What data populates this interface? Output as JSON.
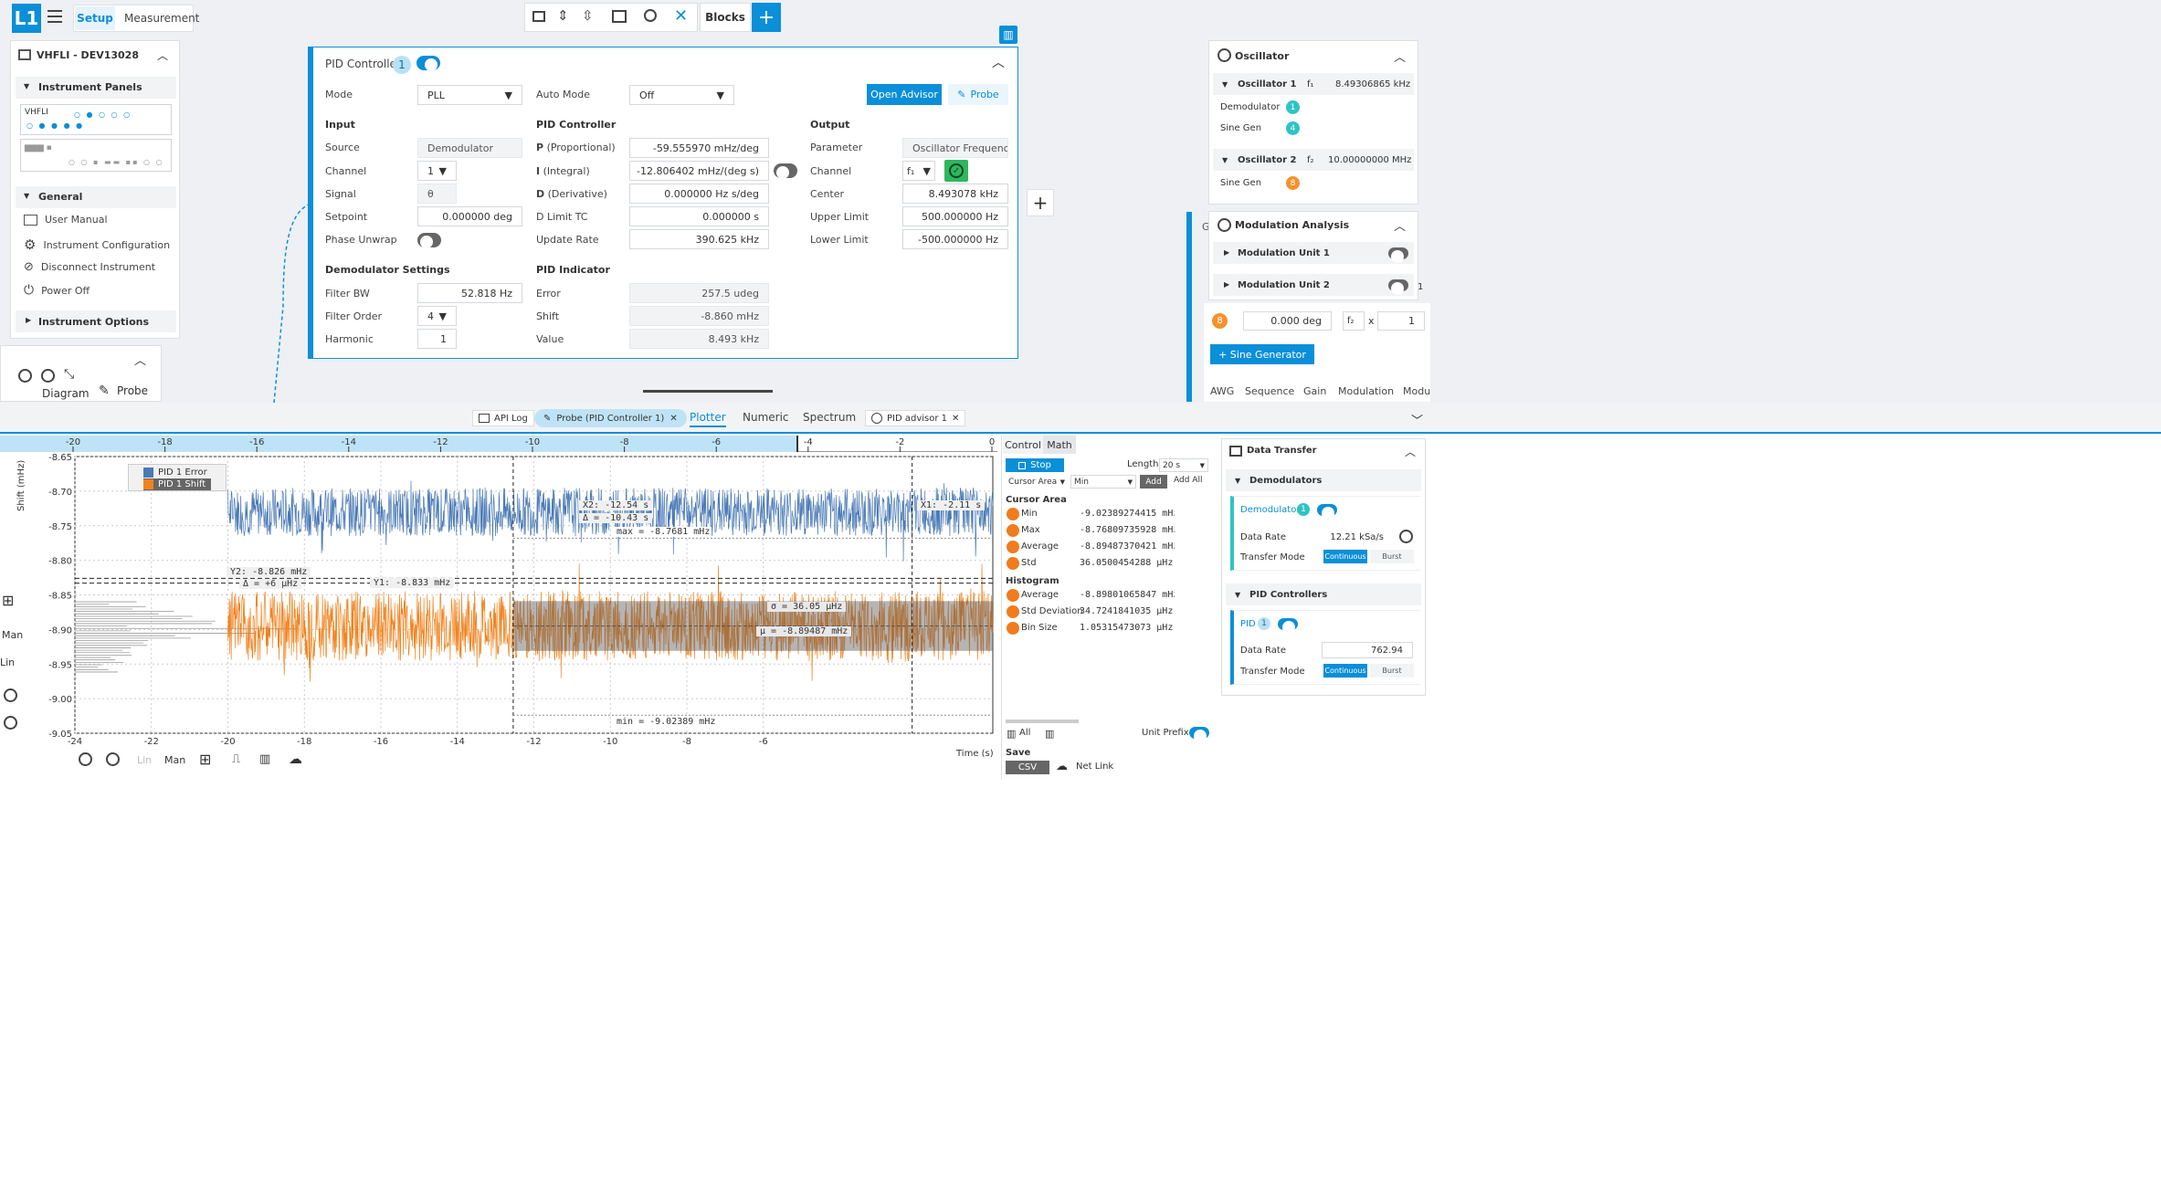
{
  "app": {
    "logo": "L1",
    "tabs": [
      "Setup",
      "Measurement"
    ],
    "active_tab": "Setup"
  },
  "toolbar": {
    "blocks_label": "Blocks",
    "add_label": "+"
  },
  "sidebar": {
    "device": "VHFLI - DEV13028",
    "instrument_panels": "Instrument Panels",
    "panel_thumb_label": "VHFLI",
    "general": "General",
    "general_items": [
      "User Manual",
      "Instrument Configuration",
      "Disconnect Instrument",
      "Power Off"
    ],
    "instrument_options": "Instrument Options",
    "diagram_label": "Diagram",
    "probe_label": "Probe"
  },
  "pid": {
    "title": "PID Controller",
    "badge": "1",
    "mode_label": "Mode",
    "mode_value": "PLL",
    "auto_mode_label": "Auto Mode",
    "auto_mode_value": "Off",
    "open_advisor": "Open Advisor",
    "probe": "Probe",
    "input": {
      "heading": "Input",
      "rows": [
        {
          "label": "Source",
          "value": "Demodulator"
        },
        {
          "label": "Channel",
          "value": "1"
        },
        {
          "label": "Signal",
          "value": "θ"
        },
        {
          "label": "Setpoint",
          "value": "0.000000 deg"
        },
        {
          "label": "Phase Unwrap",
          "value": ""
        }
      ]
    },
    "controller": {
      "heading": "PID Controller",
      "rows": [
        {
          "label_bold": "P",
          "label_rest": "(Proportional)",
          "value": "-59.555970 mHz/deg"
        },
        {
          "label_bold": "I",
          "label_rest": "(Integral)",
          "value": "-12.806402 mHz/(deg s)"
        },
        {
          "label_bold": "D",
          "label_rest": "(Derivative)",
          "value": "0.000000 Hz s/deg"
        },
        {
          "label_bold": "",
          "label_rest": "D Limit TC",
          "value": "0.000000 s"
        },
        {
          "label_bold": "",
          "label_rest": "Update Rate",
          "value": "390.625 kHz"
        }
      ]
    },
    "output": {
      "heading": "Output",
      "rows": [
        {
          "label": "Parameter",
          "value": "Oscillator Frequency"
        },
        {
          "label": "Channel",
          "value": "f₁"
        },
        {
          "label": "Center",
          "value": "8.493078 kHz"
        },
        {
          "label": "Upper Limit",
          "value": "500.000000 Hz"
        },
        {
          "label": "Lower Limit",
          "value": "-500.000000 Hz"
        }
      ]
    },
    "demod_settings": {
      "heading": "Demodulator Settings",
      "rows": [
        {
          "label": "Filter BW",
          "value": "52.818 Hz"
        },
        {
          "label": "Filter Order",
          "value": "4"
        },
        {
          "label": "Harmonic",
          "value": "1"
        }
      ]
    },
    "indicator": {
      "heading": "PID Indicator",
      "rows": [
        {
          "label": "Error",
          "value": "257.5 udeg"
        },
        {
          "label": "Shift",
          "value": "-8.860 mHz"
        },
        {
          "label": "Value",
          "value": "8.493 kHz"
        }
      ]
    }
  },
  "right_panel": {
    "oscillator_title": "Oscillator",
    "osc1": "Oscillator 1",
    "osc1_sym": "f₁",
    "osc1_freq": "8.49306865 kHz",
    "demodulator": "Demodulator",
    "demodulator_badge": "1",
    "sine_gen": "Sine Gen",
    "sine_gen_badge": "4",
    "osc2": "Oscillator 2",
    "osc2_sym": "f₂",
    "osc2_freq": "10.00000000 MHz",
    "sine_gen2": "Sine Gen",
    "sine_gen2_badge": "8",
    "mod_title": "Modulation Analysis",
    "mod_unit1": "Modulation Unit 1",
    "mod_unit2": "Modulation Unit 2",
    "row8_badge": "8",
    "row8_phase": "0.000 deg",
    "row8_sym": "f₂",
    "row8_x": "x",
    "row8_mult": "1",
    "sine_generator_btn": "+ Sine Generator",
    "bottom_tabs": [
      "AWG",
      "Sequence",
      "Gain",
      "Modulation",
      "Modu"
    ],
    "cut_letter": "G",
    "cut_one": "1"
  },
  "lower_tabs": {
    "api_log": "API Log",
    "probe_tab": "Probe (PID Controller 1)",
    "plotter": "Plotter",
    "numeric": "Numeric",
    "spectrum": "Spectrum",
    "advisor": "PID advisor 1"
  },
  "plot": {
    "ylabel": "Shift (mHz)",
    "xlabel": "Time (s)",
    "legend": [
      "PID 1 Error",
      "PID 1 Shift"
    ],
    "side_labels": [
      "Man",
      "Lin"
    ],
    "bottom_labels": [
      "Lin",
      "Man"
    ],
    "annotations": {
      "x2": "X2: -12.54 s",
      "dx": "Δ = -10.43 s",
      "x1": "X1: -2.11 s",
      "max": "max = -8.7681 mHz",
      "min": "min = -9.02389 mHz",
      "y2": "Y2: -8.826 mHz",
      "dy": "Δ = +6 μHz",
      "y1": "Y1: -8.833 mHz",
      "sigma": "σ = 36.05 μHz",
      "mu": "μ = -8.89487 mHz"
    }
  },
  "chart_data": {
    "type": "line",
    "title": "",
    "xlabel": "Time (s)",
    "ylabel": "Shift (mHz)",
    "xlim": [
      -24,
      0
    ],
    "ylim": [
      -9.05,
      -8.65
    ],
    "x_ticks": [
      -24,
      -22,
      -20,
      -18,
      -16,
      -14,
      -12,
      -10,
      -8,
      -6
    ],
    "y_ticks": [
      -8.65,
      -8.7,
      -8.75,
      -8.8,
      -8.85,
      -8.9,
      -8.95,
      -9.0,
      -9.05
    ],
    "overview_ticks": [
      -20,
      -18,
      -16,
      -14,
      -12,
      -10,
      -8,
      -6,
      -4,
      -2,
      0
    ],
    "grid": true,
    "legend_position": "top-left",
    "series": [
      {
        "name": "PID 1 Error",
        "color": "#4a7ab5",
        "x_start": -20,
        "x_end": 0,
        "center": -8.73,
        "spread": 0.025
      },
      {
        "name": "PID 1 Shift",
        "color": "#f0831e",
        "x_start": -20,
        "x_end": 0,
        "center": -8.895,
        "spread": 0.036
      }
    ]
  },
  "math_panel": {
    "tabs": [
      "Control",
      "Math"
    ],
    "stop": "Stop",
    "length_label": "Length",
    "length_value": "20 s",
    "cursor_area": "Cursor Area",
    "min_select": "Min",
    "add": "Add",
    "add_all": "Add All",
    "cursor_area_title": "Cursor Area",
    "cursor_rows": [
      {
        "label": "Min",
        "value": "-9.02389274415 mHz"
      },
      {
        "label": "Max",
        "value": "-8.76809735928 mHz"
      },
      {
        "label": "Average",
        "value": "-8.89487370421 mHz"
      },
      {
        "label": "Std",
        "value": "36.0500454288 μHz"
      }
    ],
    "histogram_title": "Histogram",
    "hist_rows": [
      {
        "label": "Average",
        "value": "-8.89801065847 mHz"
      },
      {
        "label": "Std Deviation",
        "value": "34.7241841035 μHz"
      },
      {
        "label": "Bin Size",
        "value": "1.05315473073 μHz"
      }
    ],
    "all": "All",
    "unit_prefix": "Unit Prefix",
    "save": "Save",
    "csv": "CSV",
    "net_link": "Net Link"
  },
  "data_transfer": {
    "title": "Data Transfer",
    "demodulators": "Demodulators",
    "demodulator": "Demodulator",
    "demod_badge": "1",
    "data_rate": "Data Rate",
    "data_rate_value": "12.21 kSa/s",
    "transfer_mode": "Transfer Mode",
    "continuous": "Continuous",
    "burst": "Burst",
    "pid_controllers": "PID Controllers",
    "pid": "PID",
    "pid_badge": "1",
    "pid_rate_value": "762.94"
  },
  "colors": {
    "accent": "#0a8fd8",
    "error_series": "#4a7ab5",
    "shift_series": "#f0831e",
    "ok_green": "#2eb85c"
  }
}
